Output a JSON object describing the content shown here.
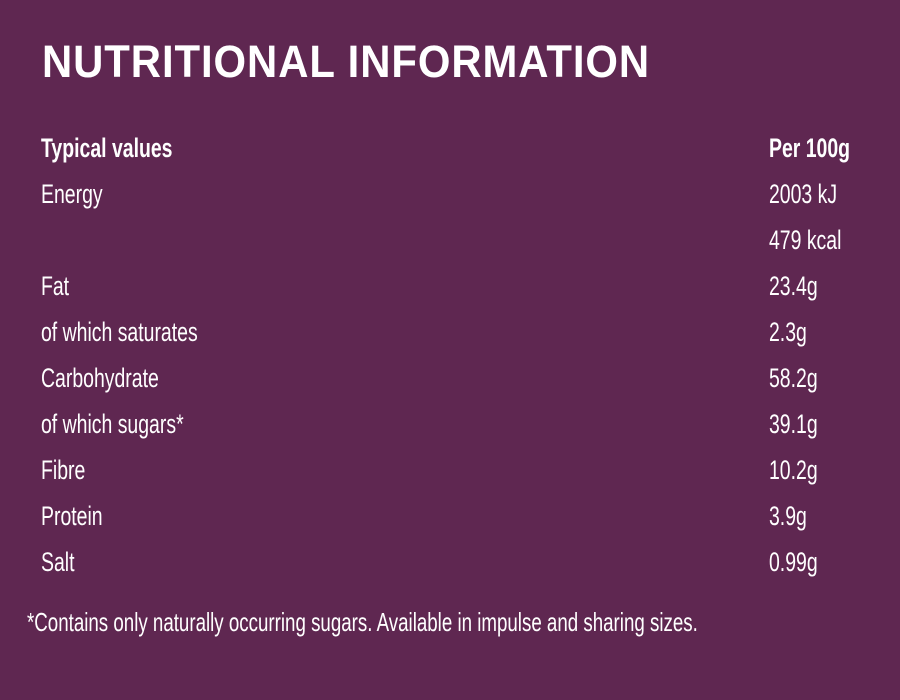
{
  "header": {
    "title": "NUTRITIONAL INFORMATION"
  },
  "table": {
    "columns": [
      "Typical values",
      "Per 100g"
    ],
    "rows": [
      [
        "Energy",
        "2003 kJ"
      ],
      [
        null,
        "479 kcal"
      ],
      [
        "Fat",
        "23.4g"
      ],
      [
        "of which saturates",
        "2.3g"
      ],
      [
        "Carbohydrate",
        "58.2g"
      ],
      [
        "of which sugars*",
        "39.1g"
      ],
      [
        "Fibre",
        "10.2g"
      ],
      [
        "Protein",
        "3.9g"
      ],
      [
        "Salt",
        "0.99g"
      ]
    ]
  },
  "footnote": "*Contains only naturally occurring sugars. Available in impulse and sharing sizes."
}
